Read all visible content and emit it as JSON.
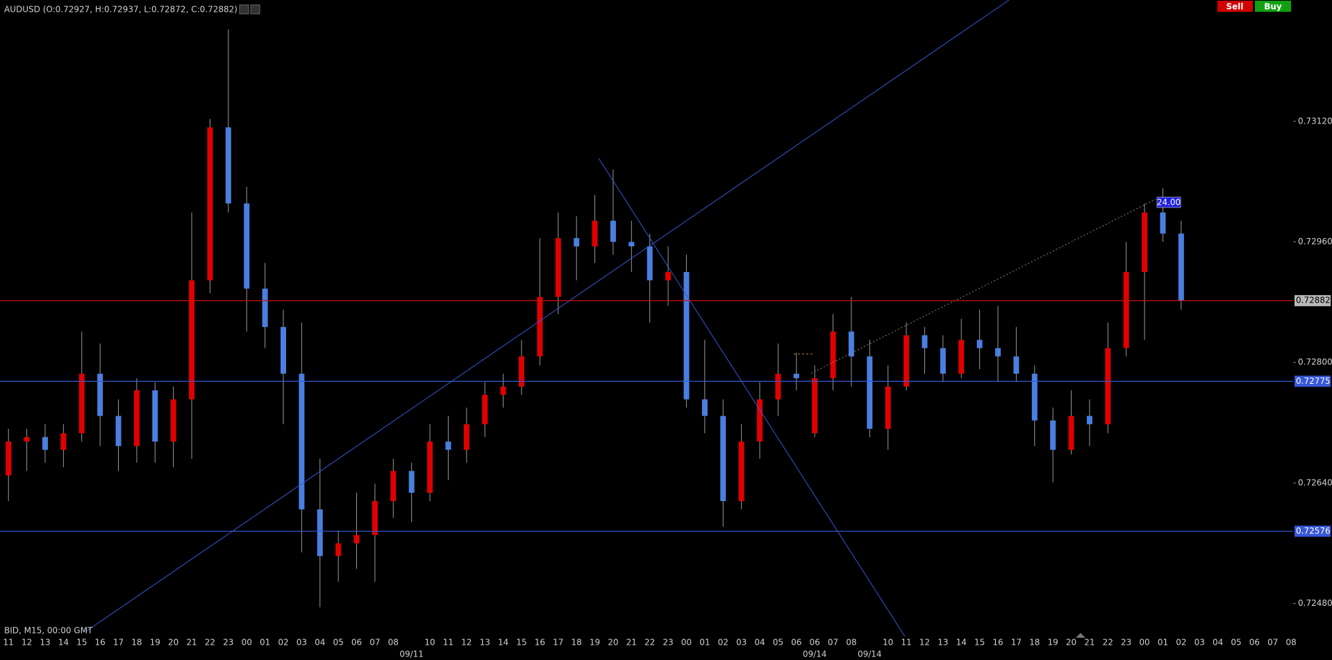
{
  "chart_data": {
    "type": "candlestick",
    "title": "AUDUSD (O:0.72927, H:0.72937, L:0.72872, C:0.72882)",
    "subtitle": "BID, M15, 00:00 GMT",
    "buttons": [
      "Sell",
      "Buy"
    ],
    "annotation": "24.00",
    "up_color": "#e00000",
    "down_color": "#4a7fe0",
    "categories": [
      "11",
      "12",
      "13",
      "14",
      "15",
      "16",
      "17",
      "18",
      "19",
      "20",
      "21",
      "22",
      "23",
      "00",
      "01",
      "02",
      "03",
      "04",
      "05",
      "06",
      "07",
      "08",
      null,
      "10",
      "11",
      "12",
      "13",
      "14",
      "15",
      "16",
      "17",
      "18",
      "19",
      "20",
      "21",
      "22",
      "23",
      "00",
      "01",
      "02",
      "03",
      "04",
      "05",
      "06",
      "06",
      "07",
      "08",
      null,
      "10",
      "11",
      "12",
      "13",
      "14",
      "15",
      "16",
      "17",
      "18",
      "19",
      "20",
      "21",
      "22",
      "23",
      "00",
      "01",
      "02",
      "03",
      "04",
      "05",
      "06",
      "07",
      "08"
    ],
    "date_labels": [
      null,
      null,
      null,
      null,
      null,
      null,
      null,
      null,
      null,
      null,
      null,
      null,
      null,
      null,
      null,
      null,
      null,
      null,
      null,
      null,
      null,
      null,
      "09/11",
      null,
      null,
      null,
      null,
      null,
      null,
      null,
      null,
      null,
      null,
      null,
      null,
      null,
      null,
      null,
      null,
      null,
      null,
      null,
      null,
      null,
      "09/14",
      null,
      null,
      "09/14",
      null,
      null,
      null,
      null,
      null,
      null,
      null,
      null,
      null,
      null,
      null,
      null,
      null,
      null,
      null,
      null,
      null,
      null,
      null,
      null,
      null,
      null,
      null
    ],
    "open": [
      0.7265,
      0.72695,
      0.72701,
      0.72684,
      0.72706,
      0.72785,
      0.72729,
      0.72689,
      0.72763,
      0.72695,
      0.72751,
      0.72909,
      0.73112,
      0.73011,
      0.72898,
      0.72847,
      0.72785,
      0.72605,
      0.72543,
      0.7256,
      0.72571,
      0.72616,
      0.72656,
      0.72627,
      0.72695,
      0.72684,
      0.72718,
      0.72757,
      0.72768,
      0.72808,
      0.72887,
      0.72965,
      0.72954,
      0.72988,
      0.7296,
      0.72954,
      0.72909,
      0.7292,
      0.72751,
      0.72729,
      0.72616,
      0.72695,
      0.72751,
      0.72785,
      0.72706,
      0.72779,
      0.72841,
      0.72808,
      0.72712,
      0.72768,
      0.72836,
      0.72819,
      0.72785,
      0.7283,
      0.72819,
      0.72808,
      0.72785,
      0.72723,
      0.72684,
      0.72729,
      0.72718,
      0.72819,
      0.7292,
      0.72999,
      0.72971,
      null,
      null,
      null,
      null,
      null,
      null
    ],
    "high": [
      0.72712,
      0.72712,
      0.72718,
      0.72718,
      0.72841,
      0.72825,
      0.72751,
      0.72779,
      0.72774,
      0.72768,
      0.72999,
      0.73123,
      0.73242,
      0.73033,
      0.72932,
      0.7287,
      0.72853,
      0.72672,
      0.72577,
      0.72627,
      0.72639,
      0.72672,
      0.72667,
      0.72718,
      0.72729,
      0.7274,
      0.72774,
      0.72785,
      0.7283,
      0.72965,
      0.72999,
      0.72994,
      0.73022,
      0.73056,
      0.72988,
      0.72971,
      0.72954,
      0.72943,
      0.7283,
      0.72751,
      0.72718,
      0.72774,
      0.72825,
      0.72813,
      0.72796,
      0.72864,
      0.72887,
      0.7283,
      0.72796,
      0.72853,
      0.72847,
      0.72836,
      0.72858,
      0.7287,
      0.72875,
      0.72847,
      0.72796,
      0.7274,
      0.72763,
      0.72751,
      0.72853,
      0.7296,
      0.73011,
      0.73031,
      0.72988,
      null,
      null,
      null,
      null,
      null,
      null
    ],
    "low": [
      0.72616,
      0.72656,
      0.72667,
      0.72661,
      0.72695,
      0.72689,
      0.72656,
      0.72667,
      0.72667,
      0.72661,
      0.72672,
      0.72892,
      0.72999,
      0.72841,
      0.72819,
      0.72718,
      0.72548,
      0.72475,
      0.72509,
      0.72526,
      0.72509,
      0.72594,
      0.72588,
      0.72616,
      0.72644,
      0.72667,
      0.72701,
      0.7274,
      0.72757,
      0.72796,
      0.72864,
      0.72909,
      0.72932,
      0.72943,
      0.7292,
      0.72853,
      0.72875,
      0.7274,
      0.72706,
      0.72582,
      0.72605,
      0.72672,
      0.72729,
      0.72763,
      0.72701,
      0.72763,
      0.72768,
      0.72701,
      0.72684,
      0.72763,
      0.72785,
      0.72774,
      0.72779,
      0.72791,
      0.72774,
      0.72774,
      0.72689,
      0.72641,
      0.72678,
      0.72689,
      0.72706,
      0.72808,
      0.7283,
      0.7296,
      0.7287,
      null,
      null,
      null,
      null,
      null,
      null
    ],
    "close": [
      0.72695,
      0.72701,
      0.72684,
      0.72706,
      0.72785,
      0.72729,
      0.72689,
      0.72763,
      0.72695,
      0.72751,
      0.72909,
      0.73112,
      0.73011,
      0.72898,
      0.72847,
      0.72785,
      0.72605,
      0.72543,
      0.7256,
      0.72571,
      0.72616,
      0.72656,
      0.72627,
      0.72695,
      0.72684,
      0.72718,
      0.72757,
      0.72768,
      0.72808,
      0.72887,
      0.72965,
      0.72954,
      0.72988,
      0.7296,
      0.72954,
      0.72909,
      0.7292,
      0.72751,
      0.72729,
      0.72616,
      0.72695,
      0.72751,
      0.72785,
      0.72779,
      0.72779,
      0.72841,
      0.72808,
      0.72712,
      0.72768,
      0.72836,
      0.72819,
      0.72785,
      0.7283,
      0.72819,
      0.72808,
      0.72785,
      0.72723,
      0.72684,
      0.72729,
      0.72718,
      0.72819,
      0.7292,
      0.72999,
      0.72971,
      0.72882,
      null,
      null,
      null,
      null,
      null,
      null
    ],
    "ylim": [
      0.72453,
      0.73281
    ],
    "yticks": [
      {
        "value": 0.7312,
        "label": "0.73120"
      },
      {
        "value": 0.7296,
        "label": "0.72960"
      },
      {
        "value": 0.728,
        "label": "0.72800"
      },
      {
        "value": 0.7264,
        "label": "0.72640"
      },
      {
        "value": 0.7248,
        "label": "0.72480"
      }
    ],
    "levels": [
      {
        "value": 0.72882,
        "color": "#d01010",
        "label_bg": "#b8b8b8",
        "label_fg": "#000000"
      },
      {
        "value": 0.72775,
        "color": "#3858d8",
        "label_bg": "#3858d8",
        "label_fg": "#ffffff"
      },
      {
        "value": 0.72576,
        "color": "#3858d8",
        "label_bg": "#3858d8",
        "label_fg": "#ffffff"
      }
    ]
  }
}
